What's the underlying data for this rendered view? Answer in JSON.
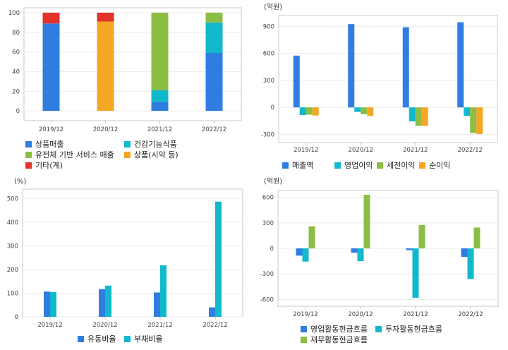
{
  "chart_data": [
    {
      "type": "bar",
      "stacked": true,
      "categories": [
        "2019/12",
        "2020/12",
        "2021/12",
        "2022/12"
      ],
      "unit": "",
      "ylim": [
        -10,
        105
      ],
      "yticks": [
        0,
        20,
        40,
        60,
        80,
        100
      ],
      "grid": true,
      "legend_position": "bottom",
      "series": [
        {
          "name": "상품매출",
          "color": "#2f7de1",
          "values": [
            89,
            0,
            9,
            59
          ]
        },
        {
          "name": "건강기능식품",
          "color": "#12b8cc",
          "values": [
            0,
            0,
            12,
            31
          ]
        },
        {
          "name": "유전체 기반 서비스 매출",
          "color": "#8cbd45",
          "values": [
            0,
            0,
            79,
            10
          ]
        },
        {
          "name": "상품(시약 등)",
          "color": "#f5a623",
          "values": [
            0,
            91,
            0,
            0
          ]
        },
        {
          "name": "기타(계)",
          "color": "#e3312c",
          "values": [
            11,
            9,
            0,
            0
          ]
        }
      ]
    },
    {
      "type": "bar",
      "categories": [
        "2019/12",
        "2020/12",
        "2021/12",
        "2022/12"
      ],
      "unit": "(억원)",
      "ylim": [
        -390,
        1020
      ],
      "yticks": [
        -300,
        0,
        300,
        600,
        900
      ],
      "grid": true,
      "legend_position": "bottom",
      "series": [
        {
          "name": "매출액",
          "color": "#2f7de1",
          "values": [
            575,
            925,
            890,
            945
          ]
        },
        {
          "name": "영업이익",
          "color": "#12b8cc",
          "values": [
            -85,
            -50,
            -155,
            -95
          ]
        },
        {
          "name": "세전이익",
          "color": "#8cbd45",
          "values": [
            -80,
            -75,
            -205,
            -285
          ]
        },
        {
          "name": "순이익",
          "color": "#f5a623",
          "values": [
            -90,
            -95,
            -205,
            -295
          ]
        }
      ]
    },
    {
      "type": "bar",
      "categories": [
        "2019/12",
        "2020/12",
        "2021/12",
        "2022/12"
      ],
      "unit": "(%)",
      "ylim": [
        0,
        540
      ],
      "yticks": [
        0,
        100,
        200,
        300,
        400,
        500
      ],
      "grid": true,
      "legend_position": "bottom",
      "series": [
        {
          "name": "유동비율",
          "color": "#2f7de1",
          "values": [
            107,
            117,
            103,
            40
          ]
        },
        {
          "name": "부채비율",
          "color": "#12b8cc",
          "values": [
            105,
            132,
            218,
            487
          ]
        }
      ]
    },
    {
      "type": "bar",
      "categories": [
        "2019/12",
        "2020/12",
        "2021/12",
        "2022/12"
      ],
      "unit": "(억원)",
      "ylim": [
        -680,
        680
      ],
      "yticks": [
        -600,
        -300,
        0,
        300,
        600
      ],
      "grid": true,
      "legend_position": "bottom",
      "series": [
        {
          "name": "영업활동현금흐름",
          "color": "#2f7de1",
          "values": [
            -85,
            -50,
            -20,
            -100
          ]
        },
        {
          "name": "투자활동현금흐름",
          "color": "#12b8cc",
          "values": [
            -155,
            -150,
            -580,
            -360
          ]
        },
        {
          "name": "재무활동현금흐름",
          "color": "#8cbd45",
          "values": [
            260,
            630,
            275,
            245
          ]
        }
      ]
    }
  ]
}
